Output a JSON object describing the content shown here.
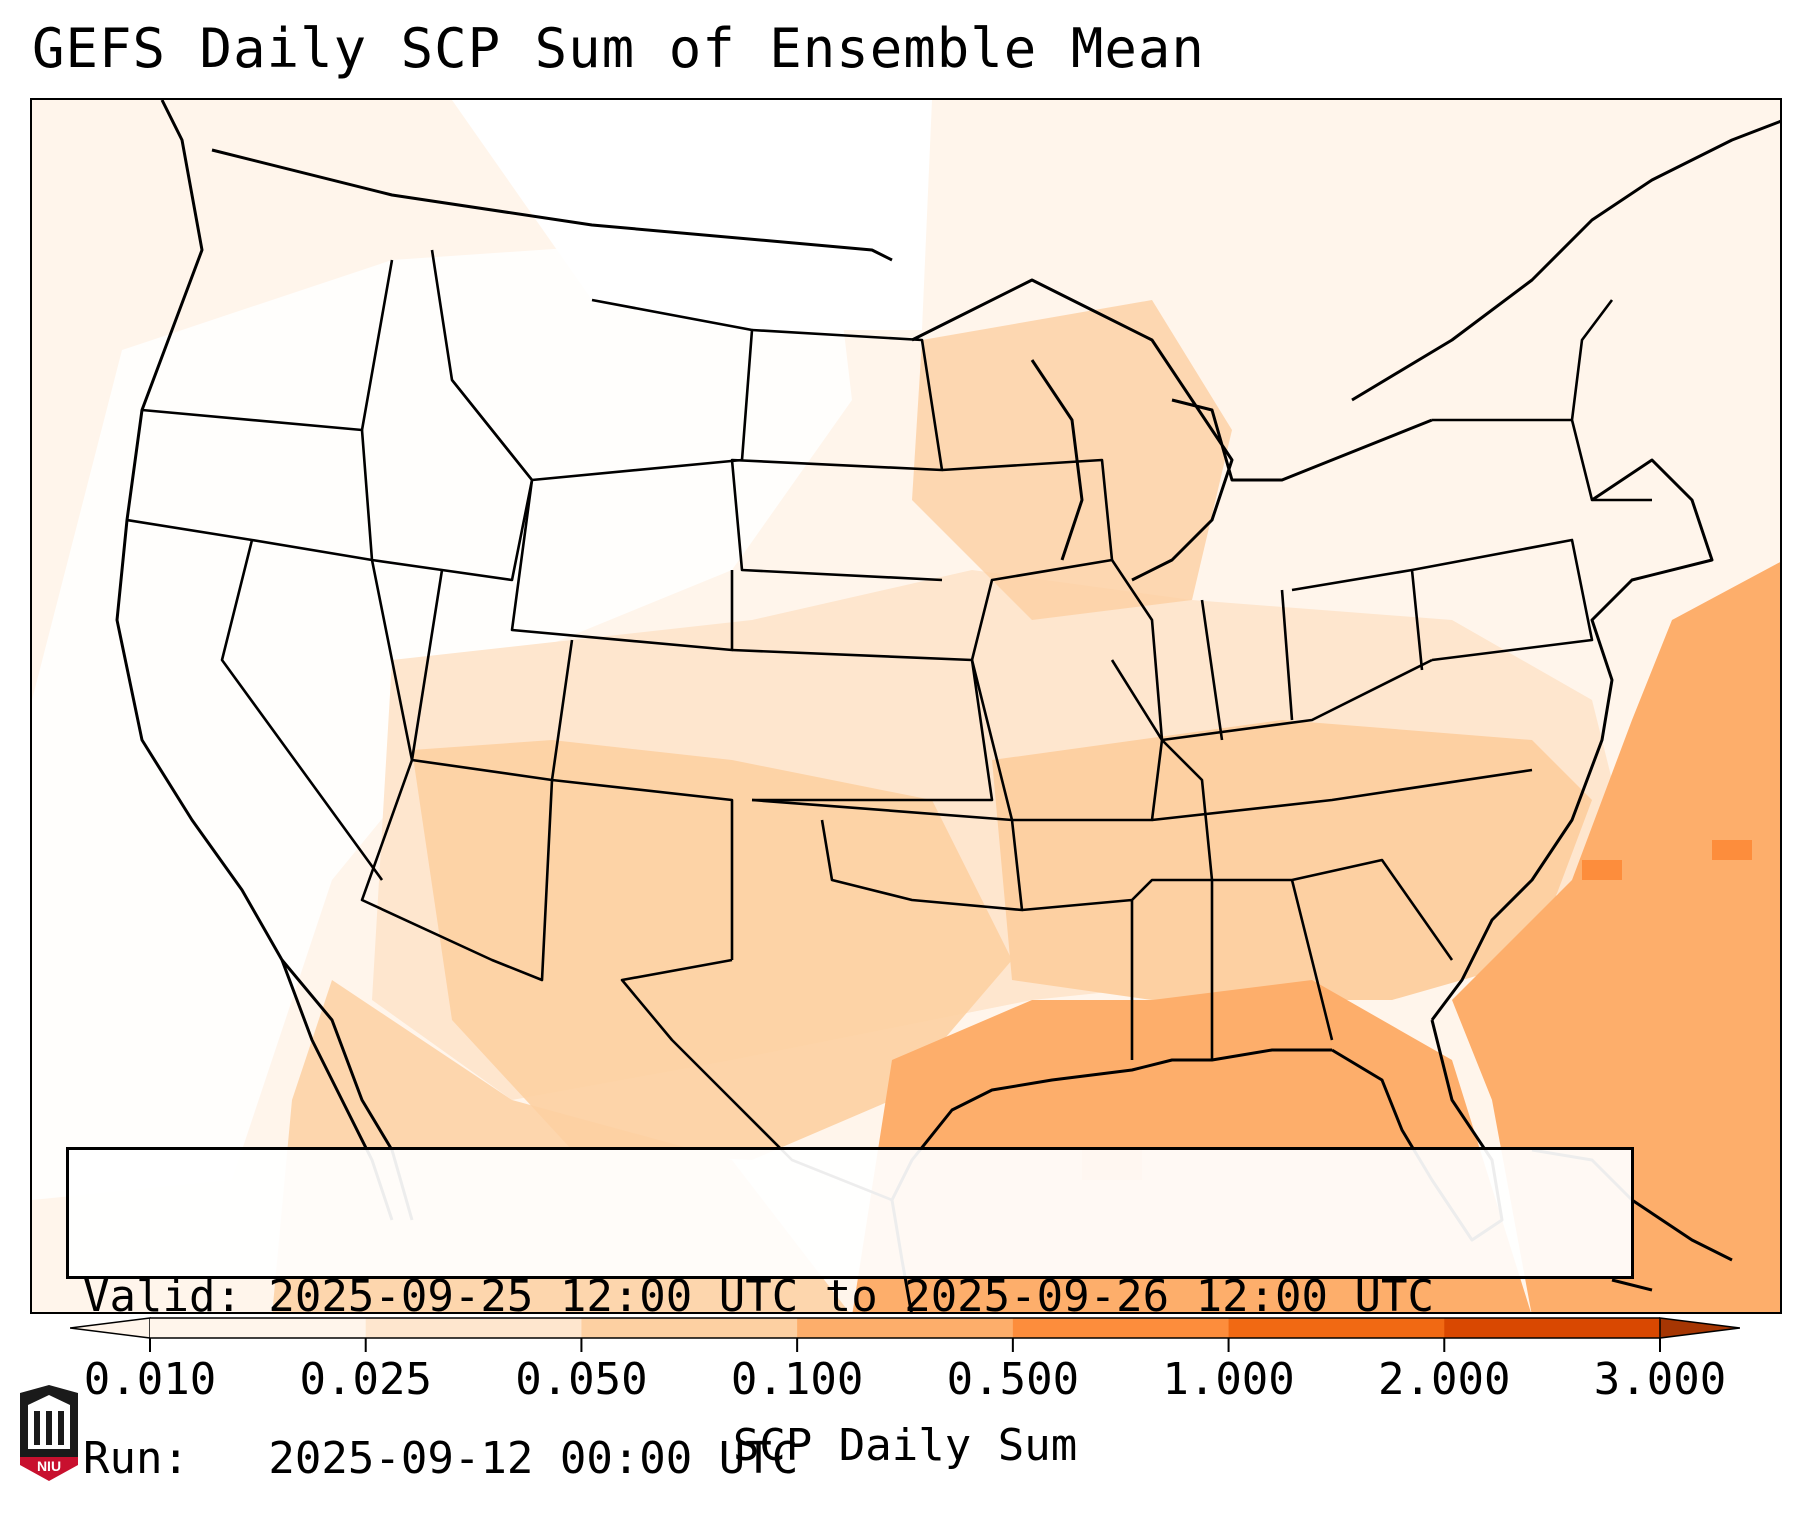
{
  "title": "GEFS Daily SCP Sum of Ensemble Mean",
  "info": {
    "valid": "Valid: 2025-09-25 12:00 UTC to 2025-09-26 12:00 UTC",
    "run": "Run:   2025-09-12 00:00 UTC"
  },
  "colorbar": {
    "title": "SCP Daily Sum",
    "ticks": [
      "0.010",
      "0.025",
      "0.050",
      "0.100",
      "0.500",
      "1.000",
      "2.000",
      "3.000"
    ],
    "colors": [
      "#fff5eb",
      "#fee6ce",
      "#fdd0a2",
      "#fdae6b",
      "#fd8d3c",
      "#f16913",
      "#d94801",
      "#a63603"
    ],
    "extend": "both"
  },
  "map": {
    "region": "CONUS",
    "field": "GEFS ensemble mean daily SCP sum",
    "shading": {
      "land_base": "#fff5eb",
      "moderate": "#fee6ce",
      "elevated": "#fdd0a2",
      "high": "#fdae6b",
      "peak": "#fd8d3c"
    },
    "outline_color": "#000000"
  },
  "logo": {
    "name": "niu-logo",
    "text": "NIU",
    "color": "#c8102e"
  }
}
